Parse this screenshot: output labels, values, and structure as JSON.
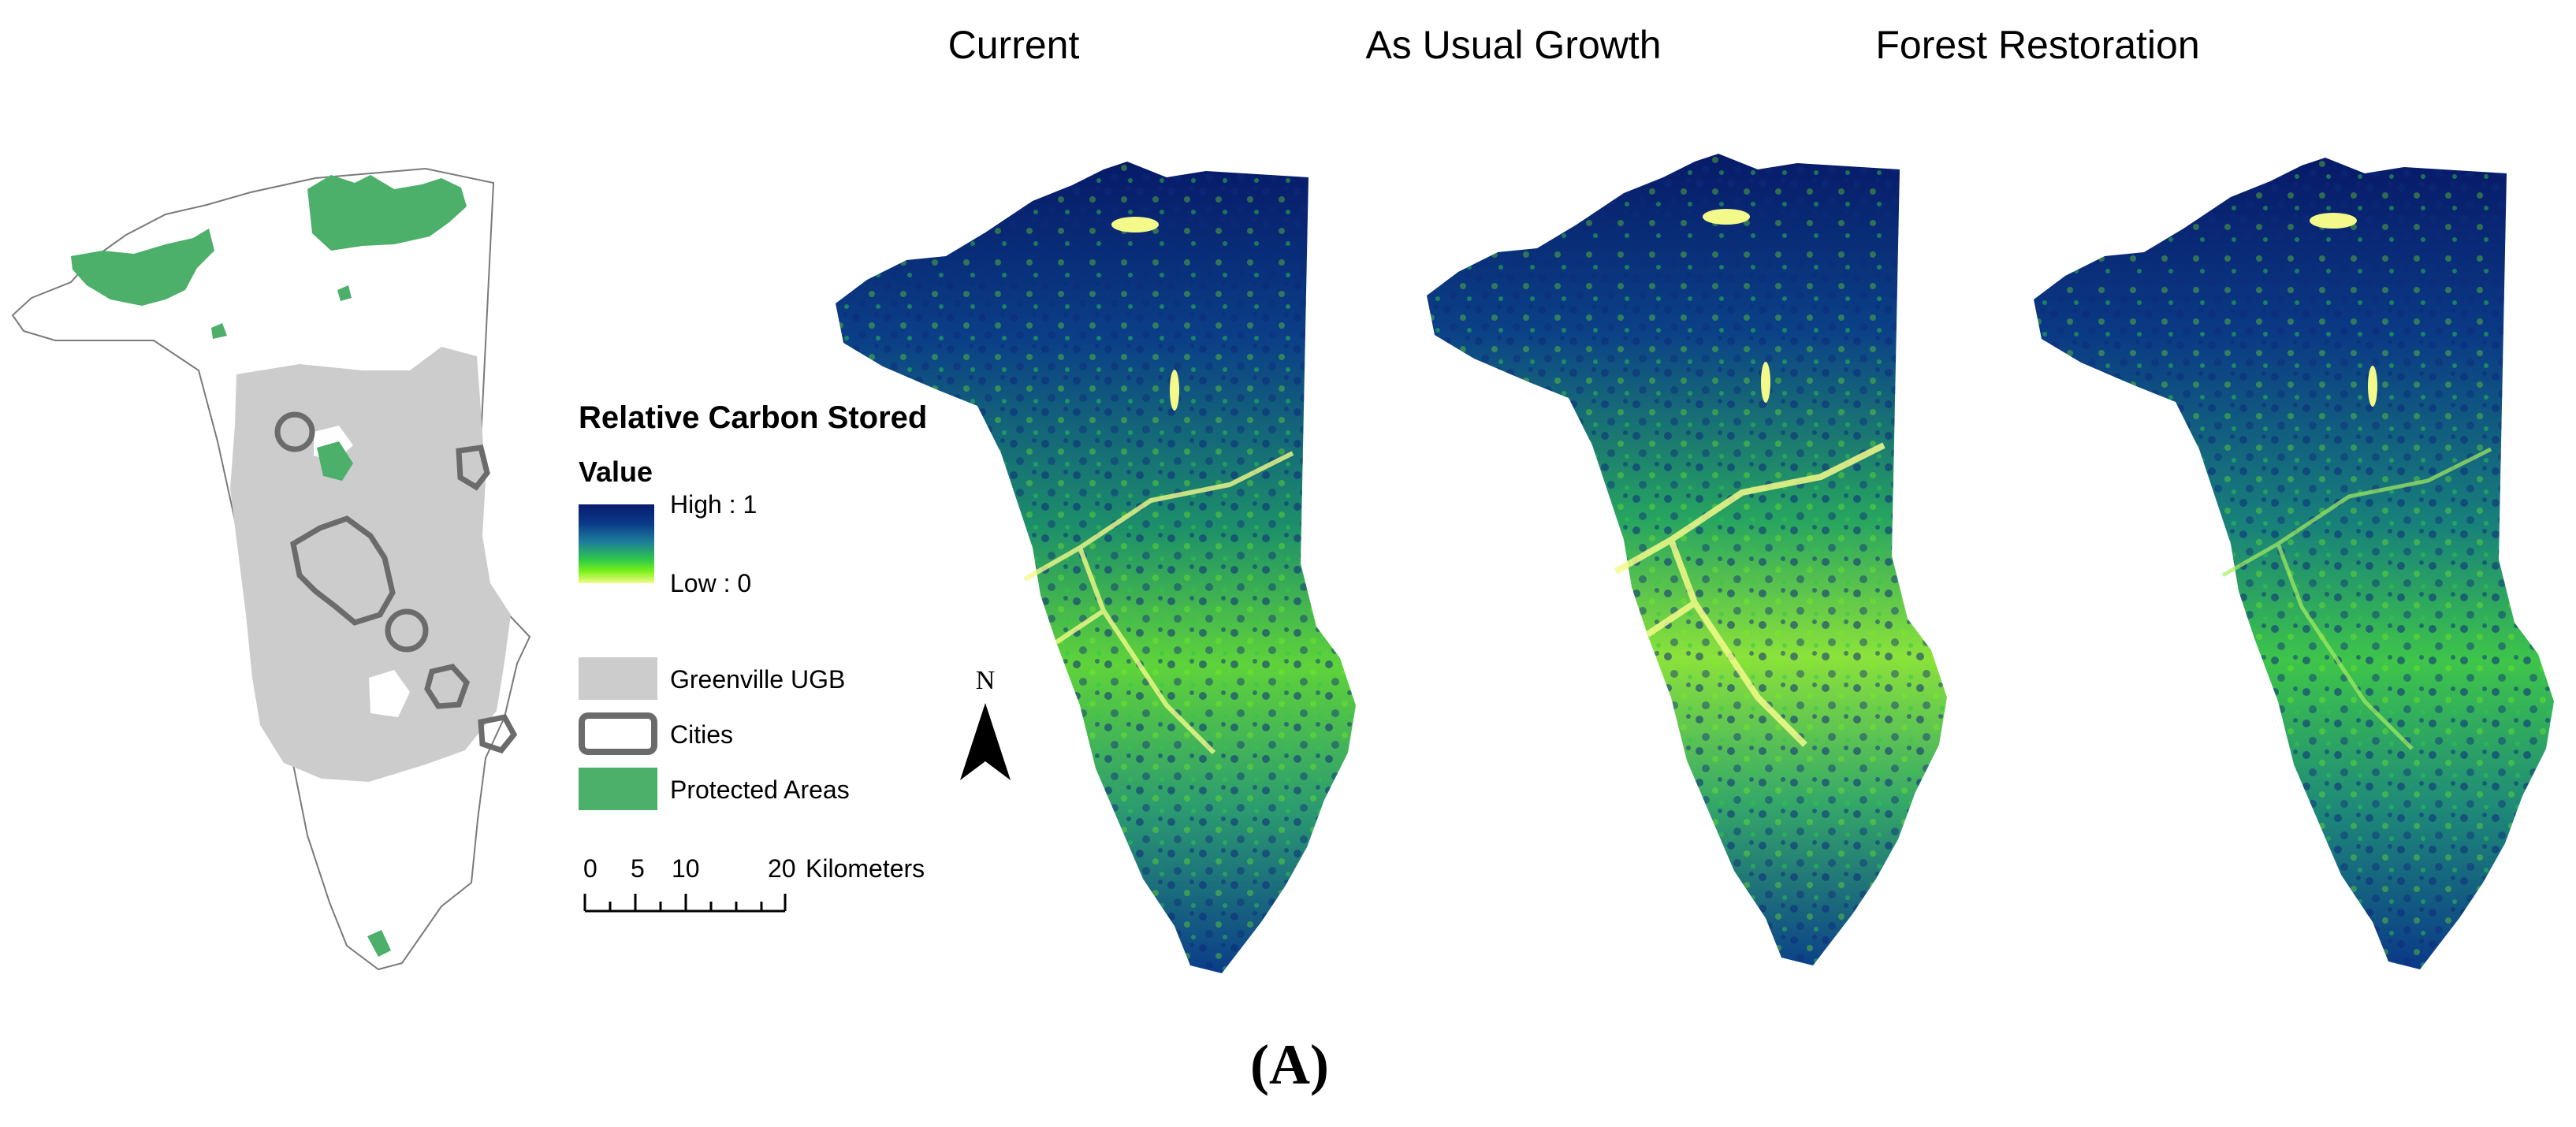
{
  "panel_titles": [
    "Current",
    "As Usual Growth",
    "Forest Restoration"
  ],
  "legend": {
    "heading": "Relative Carbon Stored",
    "subheading": "Value",
    "high_label": "High : 1",
    "low_label": "Low : 0",
    "high_value": 1,
    "low_value": 0,
    "ramp_colors": [
      "#081a6b",
      "#0a3c8a",
      "#1d7f9a",
      "#2ec84a",
      "#7af21a",
      "#f4fa8a"
    ],
    "items": [
      {
        "label": "Greenville UGB",
        "color": "#cccccc"
      },
      {
        "label": "Cities",
        "color": "#6b6b6b"
      },
      {
        "label": "Protected Areas",
        "color": "#4caf6a"
      }
    ]
  },
  "scale_bar": {
    "ticks": [
      "0",
      "5",
      "10",
      "20"
    ],
    "unit_label": "Kilometers"
  },
  "north_arrow": {
    "label": "N"
  },
  "caption": "(A)"
}
